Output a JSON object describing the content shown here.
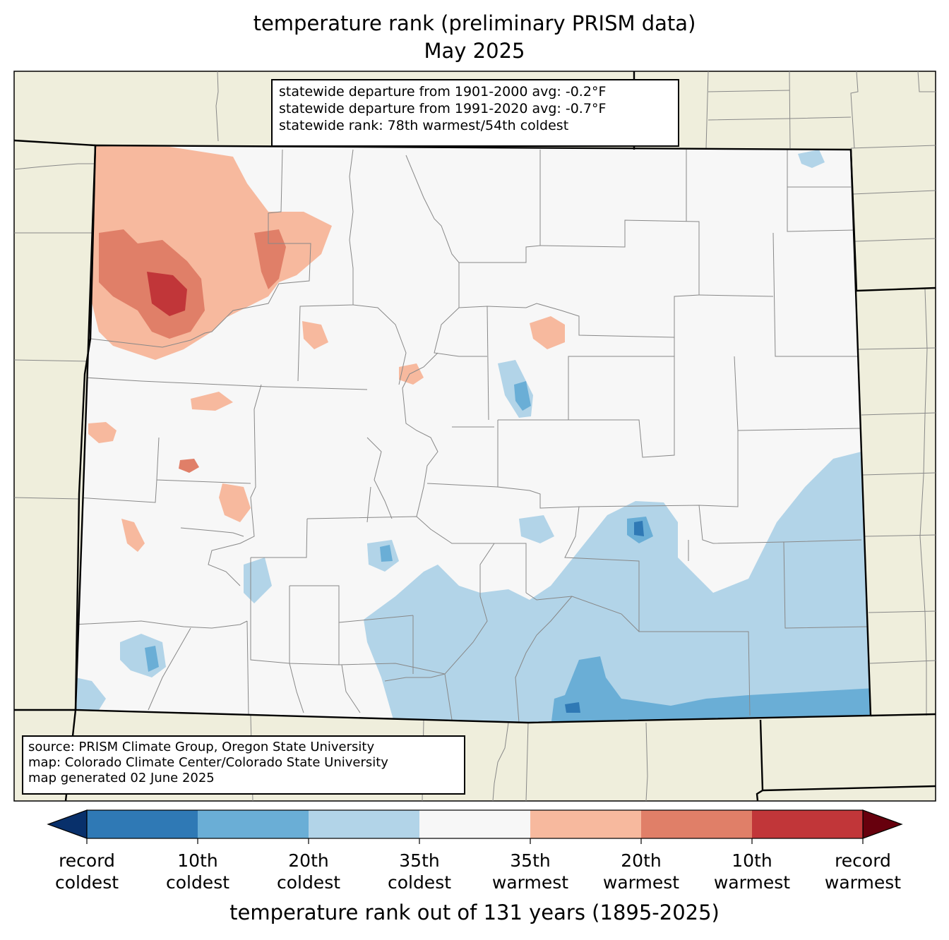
{
  "title": {
    "line1": "temperature rank (preliminary PRISM data)",
    "line2": "May 2025"
  },
  "stats_box": {
    "line1": "statewide departure from 1901-2000 avg: -0.2°F",
    "line2": "statewide departure from 1991-2020 avg: -0.7°F",
    "line3": "statewide rank: 78th warmest/54th coldest"
  },
  "source_box": {
    "line1": "source: PRISM Climate Group, Oregon State University",
    "line2": "map: Colorado Climate Center/Colorado State University",
    "line3": "map generated 02 June 2025"
  },
  "colorbar": {
    "title": "temperature rank out of 131 years (1895-2025)",
    "extend_low_color": "#08306b",
    "extend_high_color": "#67000d",
    "bins": [
      {
        "color": "#2f79b5"
      },
      {
        "color": "#6aaed6"
      },
      {
        "color": "#b2d4e8"
      },
      {
        "color": "#f7f7f7"
      },
      {
        "color": "#f7b99e"
      },
      {
        "color": "#e07f68"
      },
      {
        "color": "#c13639"
      }
    ],
    "ticks": [
      {
        "line1": "record",
        "line2": "coldest"
      },
      {
        "line1": "10th",
        "line2": "coldest"
      },
      {
        "line1": "20th",
        "line2": "coldest"
      },
      {
        "line1": "35th",
        "line2": "coldest"
      },
      {
        "line1": "35th",
        "line2": "warmest"
      },
      {
        "line1": "20th",
        "line2": "warmest"
      },
      {
        "line1": "10th",
        "line2": "warmest"
      },
      {
        "line1": "record",
        "line2": "warmest"
      }
    ]
  },
  "map_colors": {
    "land_background": "#efeedc",
    "state_fill": "#f7f7f7",
    "county_line": "#888888",
    "state_line": "#000000"
  }
}
